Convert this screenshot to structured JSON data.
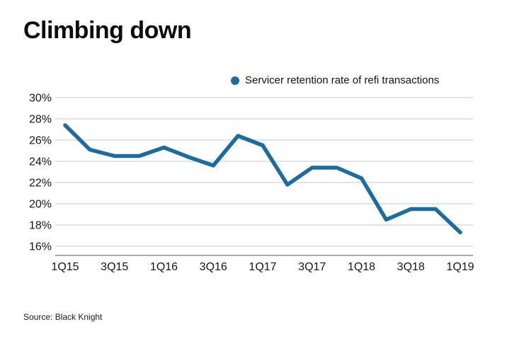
{
  "title": "Climbing down",
  "legend": {
    "label": "Servicer retention rate of refi transactions",
    "marker_color": "#1b6d9f"
  },
  "source": "Source: Black Knight",
  "chart_data": {
    "type": "line",
    "title": "Climbing down",
    "x": [
      "1Q15",
      "2Q15",
      "3Q15",
      "4Q15",
      "1Q16",
      "2Q16",
      "3Q16",
      "4Q16",
      "1Q17",
      "2Q17",
      "3Q17",
      "4Q17",
      "1Q18",
      "2Q18",
      "3Q18",
      "4Q18",
      "1Q19"
    ],
    "values": [
      27.4,
      25.1,
      24.5,
      24.5,
      25.3,
      24.4,
      23.6,
      26.4,
      25.5,
      21.8,
      23.4,
      23.4,
      22.4,
      18.5,
      19.5,
      19.5,
      17.3
    ],
    "series_name": "Servicer retention rate of refi transactions",
    "x_tick_labels": [
      "1Q15",
      "3Q15",
      "1Q16",
      "3Q16",
      "1Q17",
      "3Q17",
      "1Q18",
      "3Q18",
      "1Q19"
    ],
    "x_tick_every": 2,
    "y_ticks": [
      16,
      18,
      20,
      22,
      24,
      26,
      28,
      30
    ],
    "y_tick_suffix": "%",
    "ylim": [
      16,
      30
    ],
    "grid": "horizontal",
    "legend_position": "top",
    "line_color": "#1b6d9f",
    "grid_color": "#c9c9c9",
    "axis_color": "#8c8c8c",
    "xlabel": "",
    "ylabel": ""
  }
}
